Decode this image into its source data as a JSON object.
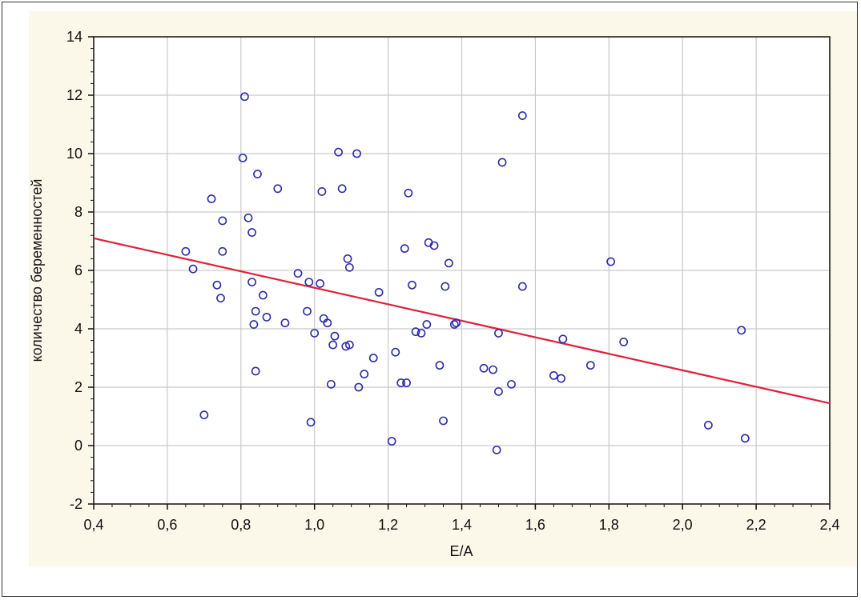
{
  "chart_data": {
    "type": "scatter",
    "title": "",
    "xlabel": "E/A",
    "ylabel": "количество беременностей",
    "xlim": [
      0.4,
      2.4
    ],
    "ylim": [
      -2,
      14
    ],
    "x_ticks": [
      0.4,
      0.6,
      0.8,
      1.0,
      1.2,
      1.4,
      1.6,
      1.8,
      2.0,
      2.2,
      2.4
    ],
    "x_tick_labels": [
      "0,4",
      "0,6",
      "0,8",
      "1,0",
      "1,2",
      "1,4",
      "1,6",
      "1,8",
      "2,0",
      "2,2",
      "2,4"
    ],
    "y_ticks": [
      -2,
      0,
      2,
      4,
      6,
      8,
      10,
      12,
      14
    ],
    "y_tick_labels": [
      "-2",
      "0",
      "2",
      "4",
      "6",
      "8",
      "10",
      "12",
      "14"
    ],
    "grid": true,
    "marker_color": "#2b2ba8",
    "series": [
      {
        "points": [
          [
            0.65,
            6.65
          ],
          [
            0.67,
            6.05
          ],
          [
            0.7,
            1.05
          ],
          [
            0.72,
            8.45
          ],
          [
            0.735,
            5.5
          ],
          [
            0.745,
            5.05
          ],
          [
            0.75,
            7.7
          ],
          [
            0.75,
            6.65
          ],
          [
            0.805,
            9.85
          ],
          [
            0.81,
            11.95
          ],
          [
            0.82,
            7.8
          ],
          [
            0.83,
            7.3
          ],
          [
            0.83,
            5.6
          ],
          [
            0.835,
            4.15
          ],
          [
            0.84,
            2.55
          ],
          [
            0.84,
            4.6
          ],
          [
            0.845,
            9.3
          ],
          [
            0.86,
            5.15
          ],
          [
            0.87,
            4.4
          ],
          [
            0.9,
            8.8
          ],
          [
            0.92,
            4.2
          ],
          [
            0.955,
            5.9
          ],
          [
            0.98,
            4.6
          ],
          [
            0.985,
            5.6
          ],
          [
            0.99,
            0.8
          ],
          [
            1.0,
            3.85
          ],
          [
            1.015,
            5.55
          ],
          [
            1.02,
            8.7
          ],
          [
            1.025,
            4.35
          ],
          [
            1.035,
            4.2
          ],
          [
            1.045,
            2.1
          ],
          [
            1.05,
            3.45
          ],
          [
            1.055,
            3.75
          ],
          [
            1.065,
            10.05
          ],
          [
            1.075,
            8.8
          ],
          [
            1.085,
            3.4
          ],
          [
            1.09,
            6.4
          ],
          [
            1.095,
            3.45
          ],
          [
            1.095,
            6.1
          ],
          [
            1.115,
            10.0
          ],
          [
            1.12,
            2.0
          ],
          [
            1.135,
            2.45
          ],
          [
            1.16,
            3.0
          ],
          [
            1.175,
            5.25
          ],
          [
            1.21,
            0.15
          ],
          [
            1.22,
            3.2
          ],
          [
            1.235,
            2.15
          ],
          [
            1.245,
            6.75
          ],
          [
            1.25,
            2.15
          ],
          [
            1.255,
            8.65
          ],
          [
            1.265,
            5.5
          ],
          [
            1.275,
            3.9
          ],
          [
            1.29,
            3.85
          ],
          [
            1.305,
            4.15
          ],
          [
            1.31,
            6.95
          ],
          [
            1.325,
            6.85
          ],
          [
            1.34,
            2.75
          ],
          [
            1.35,
            0.85
          ],
          [
            1.355,
            5.45
          ],
          [
            1.365,
            6.25
          ],
          [
            1.38,
            4.15
          ],
          [
            1.385,
            4.2
          ],
          [
            1.46,
            2.65
          ],
          [
            1.485,
            2.6
          ],
          [
            1.495,
            -0.15
          ],
          [
            1.5,
            3.85
          ],
          [
            1.5,
            1.85
          ],
          [
            1.51,
            9.7
          ],
          [
            1.535,
            2.1
          ],
          [
            1.565,
            11.3
          ],
          [
            1.565,
            5.45
          ],
          [
            1.65,
            2.4
          ],
          [
            1.67,
            2.3
          ],
          [
            1.675,
            3.65
          ],
          [
            1.75,
            2.75
          ],
          [
            1.805,
            6.3
          ],
          [
            1.84,
            3.55
          ],
          [
            2.07,
            0.7
          ],
          [
            2.16,
            3.95
          ],
          [
            2.17,
            0.25
          ]
        ]
      }
    ],
    "trendline": {
      "color": "#e0203a",
      "x": [
        0.4,
        2.4
      ],
      "y": [
        7.1,
        1.45
      ]
    }
  }
}
